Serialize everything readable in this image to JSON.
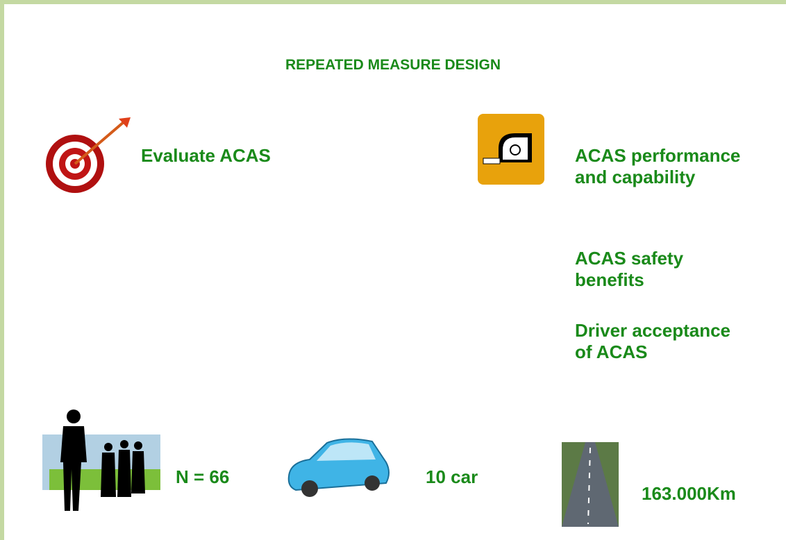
{
  "title": "REPEATED MEASURE DESIGN",
  "objective": "Evaluate ACAS",
  "measures": [
    "ACAS performance and capability",
    "ACAS safety benefits",
    "Driver acceptance of ACAS"
  ],
  "stats": {
    "participants": "N = 66",
    "cars": "10 car",
    "distance": "163.000Km"
  }
}
